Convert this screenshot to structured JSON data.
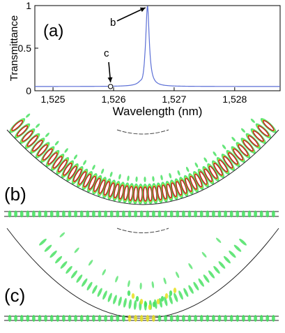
{
  "chart_data": {
    "type": "line",
    "panel_label": "(a)",
    "xlabel": "Wavelength (nm)",
    "ylabel": "Transmittance",
    "xlim": [
      1524.7,
      1528.75
    ],
    "ylim": [
      0,
      1
    ],
    "x_ticks": [
      1525,
      1526,
      1527,
      1528
    ],
    "x_tick_labels": [
      "1,525",
      "1,526",
      "1,527",
      "1,528"
    ],
    "y_ticks": [
      0,
      0.5,
      1
    ],
    "y_tick_labels": [
      "0",
      "0.5",
      "1"
    ],
    "series": [
      {
        "color": "#5b6fd6",
        "baseline": 0.05,
        "resonance_center": 1526.56,
        "resonance_width": 0.035,
        "peak_value": 1.0
      }
    ],
    "annotations": [
      {
        "label": "b",
        "x": 1526.56,
        "y": 1.0,
        "marker": "none"
      },
      {
        "label": "c",
        "x": 1525.95,
        "y": 0.05,
        "marker": "circle"
      }
    ]
  },
  "panels": {
    "b_label": "(b)",
    "c_label": "(c)"
  },
  "colors": {
    "field_low": "#3ee05a",
    "field_mid": "#e8e020",
    "field_high": "#c2261c",
    "waveguide": "#222222"
  }
}
